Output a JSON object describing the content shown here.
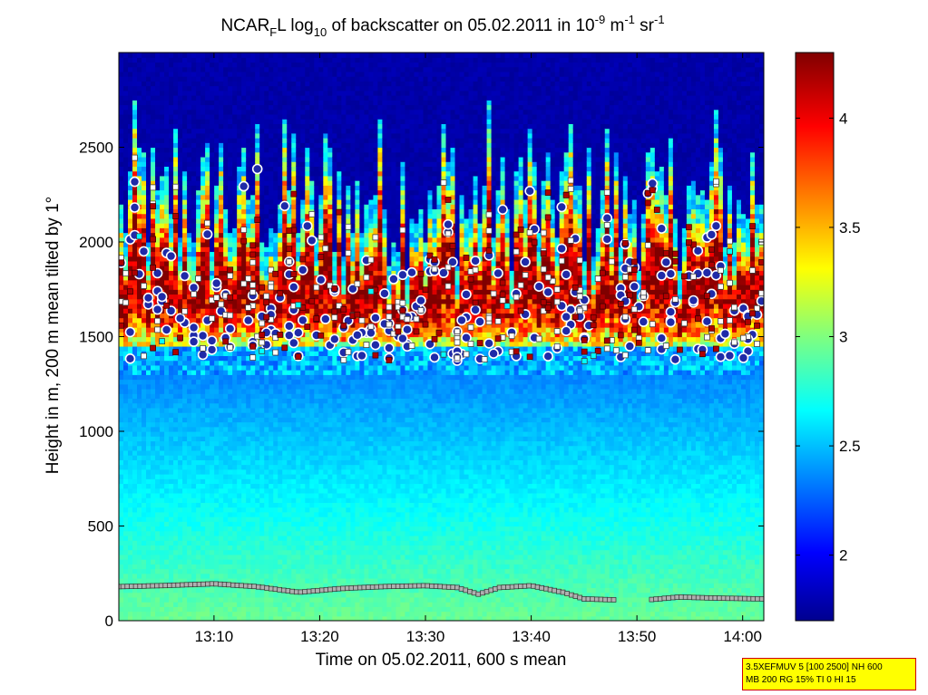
{
  "chart_data": {
    "type": "heatmap",
    "title": {
      "prefix": "NCAR",
      "sub": "F",
      "mid": "L log",
      "sub2": "10",
      "text": " of backscatter on 05.02.2011 in 10",
      "sup1": "-9",
      "unit1": " m",
      "sup2": "-1",
      "unit2": " sr",
      "sup3": "-1"
    },
    "xlabel": "Time on 05.02.2011, 600 s mean",
    "ylabel": "Height in m, 200 m mean tilted by 1°",
    "x_range": [
      "13:01",
      "14:02"
    ],
    "x_ticks": [
      "13:10",
      "13:20",
      "13:30",
      "13:40",
      "13:50",
      "14:00"
    ],
    "y_range": [
      0,
      3000
    ],
    "y_ticks": [
      0,
      500,
      1000,
      1500,
      2000,
      2500
    ],
    "colorbar": {
      "range": [
        1.7,
        4.3
      ],
      "ticks": [
        "2",
        "2.5",
        "3",
        "3.5",
        "4"
      ],
      "tick_values": [
        2,
        2.5,
        3,
        3.5,
        4
      ],
      "colormap": "jet"
    },
    "layers": {
      "surface_layer_top_m": 1300,
      "cloud_base_m": 1450,
      "cloud_top_range_m": [
        1700,
        2650
      ]
    },
    "series": [
      {
        "marker": "circle",
        "color": "#1f2aa8",
        "edge": "#ffffff"
      },
      {
        "marker": "square",
        "color": "#ffffff",
        "edge": "#404040"
      },
      {
        "marker": "square",
        "color": "#b00000",
        "edge": "#400000"
      },
      {
        "marker": "square",
        "color": "#00ffff",
        "edge": "#404040"
      }
    ],
    "low_layer_line": {
      "marker": "square",
      "points": [
        [
          "13:01",
          180
        ],
        [
          "13:05",
          185
        ],
        [
          "13:10",
          195
        ],
        [
          "13:14",
          180
        ],
        [
          "13:18",
          150
        ],
        [
          "13:22",
          170
        ],
        [
          "13:26",
          180
        ],
        [
          "13:30",
          185
        ],
        [
          "13:33",
          175
        ],
        [
          "13:35",
          140
        ],
        [
          "13:37",
          175
        ],
        [
          "13:40",
          185
        ],
        [
          "13:43",
          150
        ],
        [
          "13:45",
          115
        ],
        [
          "13:48",
          110
        ],
        [
          "13:51",
          110
        ],
        [
          "13:54",
          125
        ],
        [
          "13:57",
          120
        ],
        [
          "14:02",
          115
        ]
      ],
      "gap": [
        "13:48",
        "13:51"
      ]
    }
  },
  "info_box": {
    "line1": "3.5XEFMUV 5 [100 2500] NH 600",
    "line2": "MB 200 RG 15% TI 0 HI 15"
  }
}
